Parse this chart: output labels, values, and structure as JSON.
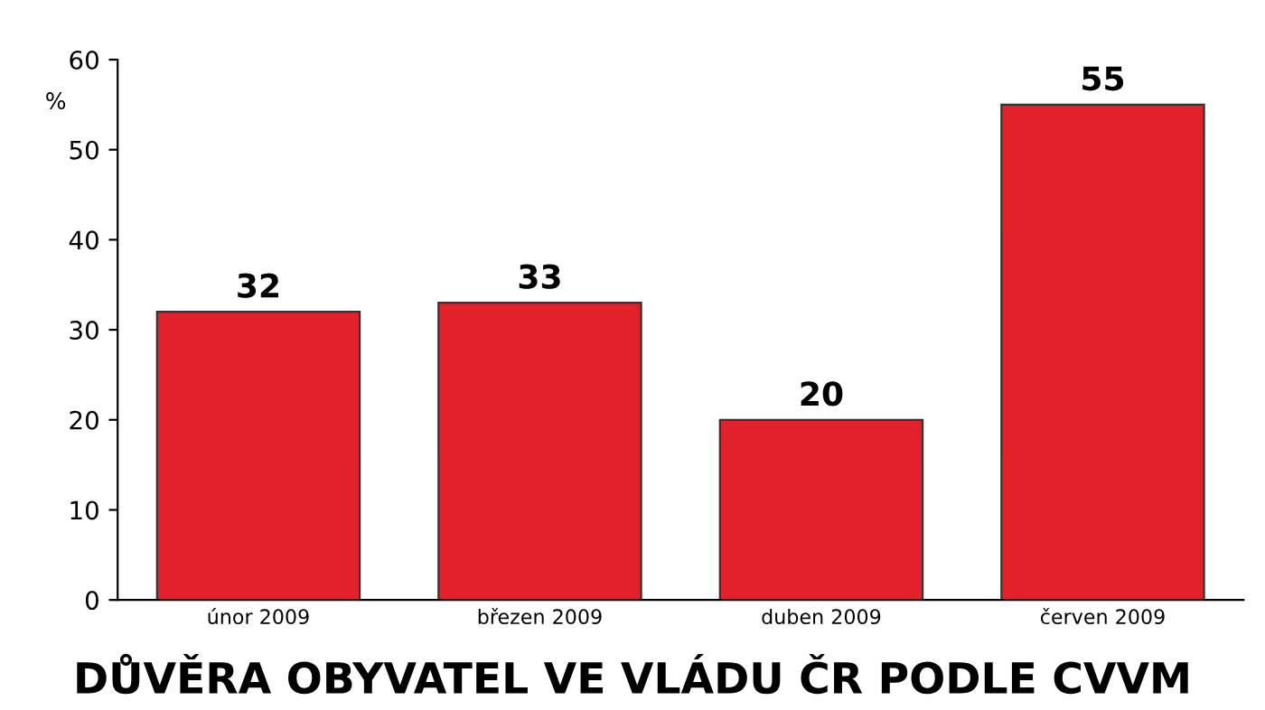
{
  "chart_data": {
    "type": "bar",
    "title": "DŮVĚRA OBYVATEL VE VLÁDU ČR PODLE CVVM",
    "ylabel": "%",
    "categories": [
      "únor 2009",
      "březen 2009",
      "duben 2009",
      "červen 2009"
    ],
    "values": [
      32,
      33,
      20,
      55
    ],
    "color": "#e3212b",
    "ylim": [
      0,
      60
    ],
    "yticks": [
      0,
      10,
      20,
      30,
      40,
      50,
      60
    ],
    "grid": false,
    "data_labels": true
  }
}
